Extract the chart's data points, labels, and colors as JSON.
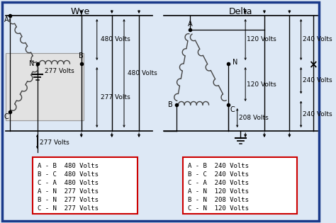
{
  "title_wye": "Wye",
  "title_delta": "Delta",
  "bg_color": "#dde8f5",
  "outer_border_color": "#1a3a8a",
  "red_box_color": "#cc0000",
  "text_color": "#333333",
  "wye_table": [
    "A - B  480 Volts",
    "B - C  480 Volts",
    "C - A  480 Volts",
    "A - N  277 Volts",
    "B - N  277 Volts",
    "C - N  277 Volts"
  ],
  "delta_table": [
    "A - B  240 Volts",
    "B - C  240 Volts",
    "C - A  240 Volts",
    "A - N  120 Volts",
    "B - N  208 Volts",
    "C - N  120 Volts"
  ],
  "wye_labels": {
    "v480_left": "480 Volts",
    "v480_right": "480 Volts",
    "v277_inner": "277 Volts",
    "v480_outer": "480 Volts",
    "v277_horiz": "277 Volts",
    "v277_bottom": "277 Volts"
  },
  "delta_labels": {
    "v120_top": "120 Volts",
    "v240_right_top": "240 Volts",
    "v120_mid": "120 Volts",
    "v240_right_upper": "240 Volts",
    "v208_bottom": "208 Volts",
    "v240_right_lower": "240 Volts"
  }
}
